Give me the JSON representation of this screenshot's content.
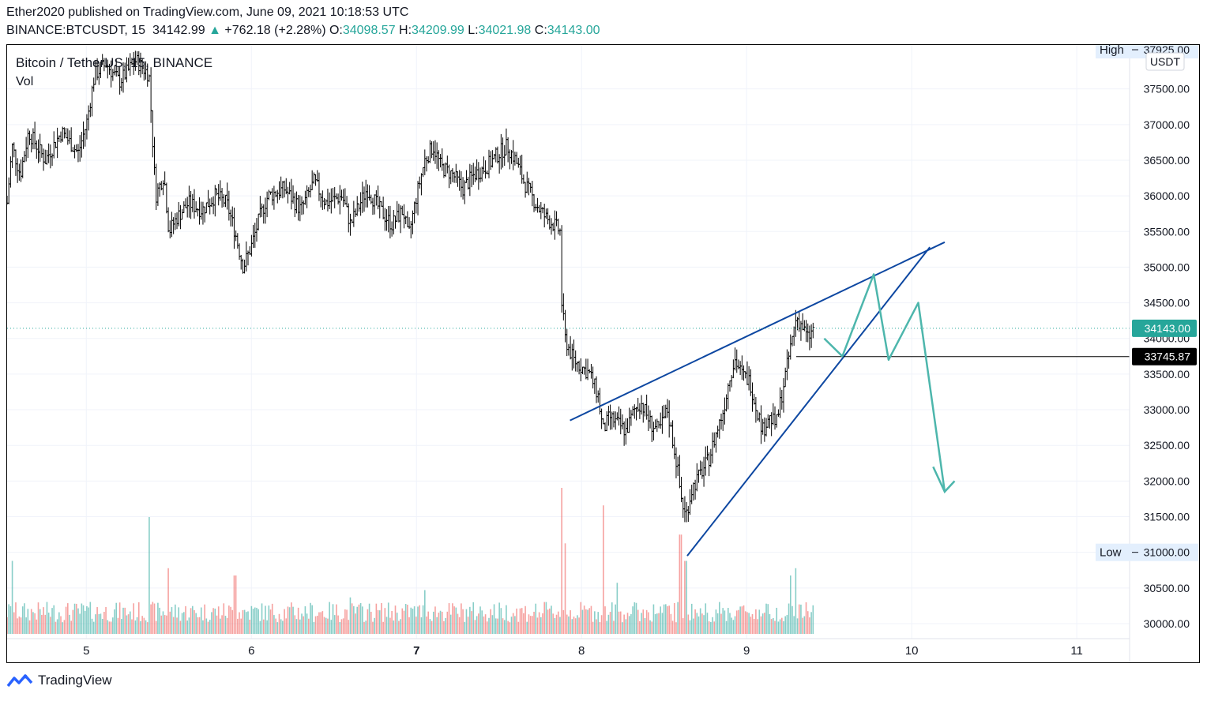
{
  "header": {
    "publisher_line": "Ether2020 published on TradingView.com, June 09, 2021 10:18:53 UTC",
    "symbol_line": "BINANCE:BTCUSDT, 15",
    "last_price": "34142.99",
    "change_arrow": "▲",
    "change": "+762.18 (+2.28%)",
    "o_label": "O:",
    "o_value": "34098.57",
    "h_label": "H:",
    "h_value": "34209.99",
    "l_label": "L:",
    "l_value": "34021.98",
    "c_label": "C:",
    "c_value": "34143.00"
  },
  "legend": {
    "title": "Bitcoin / TetherUS, 15, BINANCE",
    "vol": "Vol"
  },
  "price_axis": {
    "currency": "USDT",
    "high_label": "High",
    "high_value": "37925.00",
    "low_label": "Low",
    "low_value": "31000.00",
    "current_price": "34143.00",
    "level_price": "33745.87"
  },
  "footer": {
    "brand": "TradingView"
  },
  "colors": {
    "up": "#26a69a",
    "down": "#ef5350",
    "candle": "#000000",
    "trendline": "#0d47a1",
    "projection": "#4db6ac",
    "level_label_bg": "#000000",
    "price_label_bg": "#26a69a"
  },
  "chart_data": {
    "type": "line",
    "title": "Bitcoin / TetherUS, 15, BINANCE",
    "xlabel": "",
    "ylabel": "",
    "ylim": [
      29900,
      38050
    ],
    "xlim": [
      4.52,
      11.32
    ],
    "x_ticks": [
      "5",
      "6",
      "7",
      "8",
      "9",
      "10",
      "11"
    ],
    "x_tick_values": [
      5,
      6,
      7,
      8,
      9,
      10,
      11
    ],
    "y_ticks": [
      "30000.00",
      "30500.00",
      "31000.00",
      "31500.00",
      "32000.00",
      "32500.00",
      "33000.00",
      "33500.00",
      "34000.00",
      "34500.00",
      "35000.00",
      "35500.00",
      "36000.00",
      "36500.00",
      "37000.00",
      "37500.00"
    ],
    "y_tick_values": [
      30000,
      30500,
      31000,
      31500,
      32000,
      32500,
      33000,
      33500,
      34000,
      34500,
      35000,
      35500,
      36000,
      36500,
      37000,
      37500
    ],
    "grid": true,
    "price_path": [
      [
        4.52,
        35900
      ],
      [
        4.55,
        36700
      ],
      [
        4.6,
        36300
      ],
      [
        4.65,
        36900
      ],
      [
        4.75,
        36500
      ],
      [
        4.85,
        36900
      ],
      [
        4.95,
        36600
      ],
      [
        5.0,
        37000
      ],
      [
        5.05,
        37700
      ],
      [
        5.12,
        37850
      ],
      [
        5.2,
        37600
      ],
      [
        5.3,
        37900
      ],
      [
        5.38,
        37700
      ],
      [
        5.42,
        36000
      ],
      [
        5.47,
        36300
      ],
      [
        5.5,
        35500
      ],
      [
        5.55,
        35700
      ],
      [
        5.62,
        35900
      ],
      [
        5.7,
        35800
      ],
      [
        5.78,
        36000
      ],
      [
        5.85,
        35900
      ],
      [
        5.9,
        35500
      ],
      [
        5.95,
        35000
      ],
      [
        6.0,
        35300
      ],
      [
        6.05,
        35700
      ],
      [
        6.1,
        36000
      ],
      [
        6.2,
        36100
      ],
      [
        6.3,
        35800
      ],
      [
        6.38,
        36200
      ],
      [
        6.45,
        35900
      ],
      [
        6.55,
        36000
      ],
      [
        6.6,
        35600
      ],
      [
        6.7,
        36100
      ],
      [
        6.78,
        35800
      ],
      [
        6.85,
        35600
      ],
      [
        6.92,
        35800
      ],
      [
        6.95,
        35400
      ],
      [
        7.0,
        36000
      ],
      [
        7.05,
        36500
      ],
      [
        7.1,
        36700
      ],
      [
        7.15,
        36400
      ],
      [
        7.22,
        36300
      ],
      [
        7.28,
        36100
      ],
      [
        7.35,
        36300
      ],
      [
        7.42,
        36400
      ],
      [
        7.5,
        36600
      ],
      [
        7.55,
        36700
      ],
      [
        7.6,
        36500
      ],
      [
        7.65,
        36200
      ],
      [
        7.72,
        35900
      ],
      [
        7.78,
        35700
      ],
      [
        7.83,
        35600
      ],
      [
        7.87,
        35500
      ],
      [
        7.88,
        34500
      ],
      [
        7.9,
        34000
      ],
      [
        7.95,
        33700
      ],
      [
        8.0,
        33600
      ],
      [
        8.05,
        33500
      ],
      [
        8.1,
        33200
      ],
      [
        8.13,
        32700
      ],
      [
        8.17,
        32900
      ],
      [
        8.22,
        32800
      ],
      [
        8.27,
        32700
      ],
      [
        8.32,
        33000
      ],
      [
        8.36,
        33100
      ],
      [
        8.42,
        32800
      ],
      [
        8.47,
        32700
      ],
      [
        8.52,
        33000
      ],
      [
        8.55,
        32600
      ],
      [
        8.58,
        32200
      ],
      [
        8.6,
        31800
      ],
      [
        8.63,
        31500
      ],
      [
        8.67,
        31900
      ],
      [
        8.72,
        32100
      ],
      [
        8.77,
        32300
      ],
      [
        8.82,
        32700
      ],
      [
        8.86,
        33000
      ],
      [
        8.9,
        33500
      ],
      [
        8.93,
        33700
      ],
      [
        8.97,
        33500
      ],
      [
        9.02,
        33400
      ],
      [
        9.05,
        33100
      ],
      [
        9.1,
        32700
      ],
      [
        9.13,
        32900
      ],
      [
        9.18,
        32800
      ],
      [
        9.22,
        33300
      ],
      [
        9.26,
        33800
      ],
      [
        9.3,
        34300
      ],
      [
        9.33,
        34200
      ],
      [
        9.37,
        34000
      ],
      [
        9.41,
        34143
      ]
    ],
    "volume": [
      {
        "x": 4.55,
        "v": 0.5
      },
      {
        "x": 5.38,
        "v": 0.8
      },
      {
        "x": 5.5,
        "v": 0.45
      },
      {
        "x": 5.9,
        "v": 0.4
      },
      {
        "x": 6.6,
        "v": 0.25
      },
      {
        "x": 7.05,
        "v": 0.3
      },
      {
        "x": 7.88,
        "v": 1.0
      },
      {
        "x": 7.9,
        "v": 0.62
      },
      {
        "x": 8.13,
        "v": 0.88
      },
      {
        "x": 8.22,
        "v": 0.35
      },
      {
        "x": 8.6,
        "v": 0.68
      },
      {
        "x": 8.63,
        "v": 0.5
      },
      {
        "x": 9.3,
        "v": 0.45
      },
      {
        "x": 9.27,
        "v": 0.4
      }
    ],
    "rising_wedge": {
      "upper_line": [
        [
          7.93,
          32850
        ],
        [
          10.2,
          35350
        ]
      ],
      "lower_line": [
        [
          8.64,
          30950
        ],
        [
          10.11,
          35280
        ]
      ]
    },
    "horizontal_level": {
      "x_start": 9.3,
      "price": 33745.87
    },
    "projection_path": [
      [
        9.47,
        34000
      ],
      [
        9.58,
        33750
      ],
      [
        9.77,
        34900
      ],
      [
        9.86,
        33700
      ],
      [
        10.04,
        34500
      ],
      [
        10.2,
        31850
      ]
    ],
    "projection_arrowhead": [
      [
        10.13,
        32200
      ],
      [
        10.2,
        31850
      ],
      [
        10.26,
        32000
      ]
    ]
  }
}
